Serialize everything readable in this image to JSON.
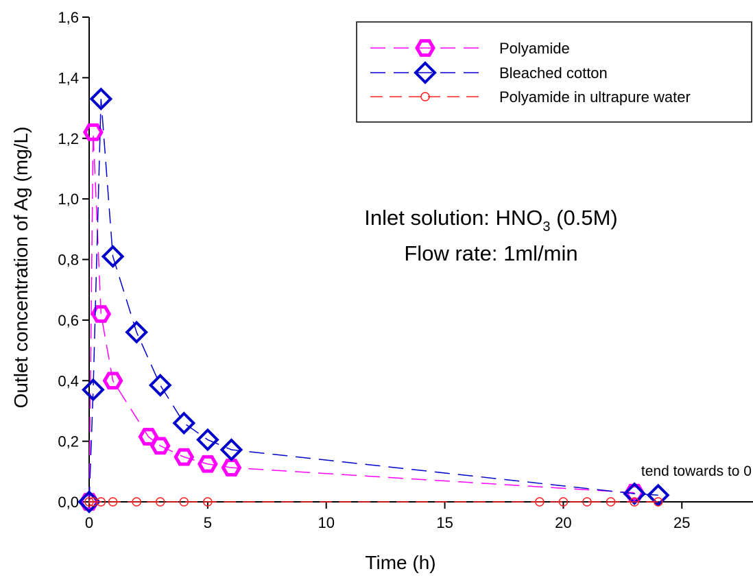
{
  "chart_data": {
    "type": "line",
    "xlabel": "Time (h)",
    "ylabel": "Outlet concentration of Ag (mg/L)",
    "xlim": [
      0,
      28
    ],
    "ylim": [
      0,
      1.6
    ],
    "xticks": [
      0,
      5,
      10,
      15,
      20,
      25
    ],
    "xtick_labels": [
      "0",
      "5",
      "10",
      "15",
      "20",
      "25"
    ],
    "yticks": [
      0,
      0.2,
      0.4,
      0.6,
      0.8,
      1.0,
      1.2,
      1.4,
      1.6
    ],
    "ytick_labels": [
      "0,0",
      "0,2",
      "0,4",
      "0,6",
      "0,8",
      "1,0",
      "1,2",
      "1,4",
      "1,6"
    ],
    "legend_position": "top-right",
    "annotations": {
      "inlet_prefix": "Inlet solution: HNO",
      "inlet_subscript": "3",
      "inlet_suffix": " (0.5M)",
      "flow_rate": "Flow rate: 1ml/min",
      "tend": "tend towards to 0"
    },
    "series": [
      {
        "name": "Polyamide",
        "color": "#ff00ff",
        "marker": "hexagon",
        "x": [
          0,
          0.17,
          0.5,
          1,
          2.5,
          3,
          4,
          5,
          6,
          23
        ],
        "y": [
          0,
          1.22,
          0.62,
          0.4,
          0.215,
          0.185,
          0.148,
          0.125,
          0.113,
          0.03
        ]
      },
      {
        "name": "Bleached cotton",
        "color": "#0000cc",
        "marker": "diamond",
        "x": [
          0,
          0.17,
          0.5,
          1,
          2,
          3,
          4,
          5,
          6,
          23,
          24
        ],
        "y": [
          0,
          0.37,
          1.33,
          0.81,
          0.56,
          0.385,
          0.26,
          0.205,
          0.172,
          0.027,
          0.022
        ]
      },
      {
        "name": "Polyamide in ultrapure water",
        "color": "#ff2020",
        "marker": "circle",
        "x": [
          0,
          0.17,
          0.5,
          1,
          2,
          3,
          4,
          5,
          19,
          20,
          21,
          22,
          23,
          24
        ],
        "y": [
          0,
          0,
          0,
          0,
          0,
          0,
          0,
          0,
          0,
          0,
          0,
          0,
          0,
          0
        ]
      }
    ]
  }
}
